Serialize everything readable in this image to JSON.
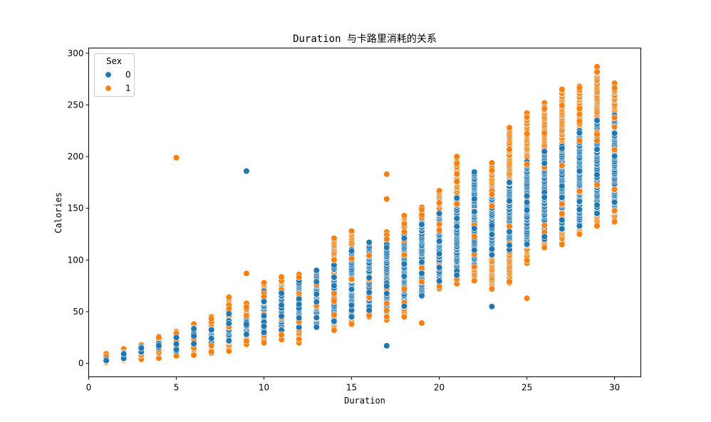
{
  "chart_data": {
    "type": "scatter",
    "title": "Duration 与卡路里消耗的关系",
    "xlabel": "Duration",
    "ylabel": "Calories",
    "xlim": [
      0,
      31.5
    ],
    "ylim": [
      -13,
      305
    ],
    "xticks": [
      0,
      5,
      10,
      15,
      20,
      25,
      30
    ],
    "yticks": [
      0,
      50,
      100,
      150,
      200,
      250,
      300
    ],
    "grid": false,
    "legend": {
      "title": "Sex",
      "position": "top-left"
    },
    "colors": {
      "0": "#1f77b4",
      "1": "#ff7f0e"
    },
    "series": [
      {
        "name": "0",
        "color": "#1f77b4",
        "ranges": [
          {
            "x": 1,
            "min": 2,
            "max": 5
          },
          {
            "x": 2,
            "min": 4,
            "max": 10
          },
          {
            "x": 3,
            "min": 8,
            "max": 16
          },
          {
            "x": 4,
            "min": 10,
            "max": 21
          },
          {
            "x": 5,
            "min": 11,
            "max": 29
          },
          {
            "x": 6,
            "min": 17,
            "max": 34
          },
          {
            "x": 7,
            "min": 20,
            "max": 40
          },
          {
            "x": 8,
            "min": 22,
            "max": 50
          },
          {
            "x": 9,
            "min": 28,
            "max": 45
          },
          {
            "x": 10,
            "min": 30,
            "max": 70
          },
          {
            "x": 11,
            "min": 32,
            "max": 72
          },
          {
            "x": 12,
            "min": 35,
            "max": 80
          },
          {
            "x": 13,
            "min": 35,
            "max": 90
          },
          {
            "x": 14,
            "min": 40,
            "max": 95
          },
          {
            "x": 15,
            "min": 45,
            "max": 110
          },
          {
            "x": 16,
            "min": 50,
            "max": 117
          },
          {
            "x": 17,
            "min": 50,
            "max": 115
          },
          {
            "x": 18,
            "min": 55,
            "max": 125
          },
          {
            "x": 19,
            "min": 65,
            "max": 140
          },
          {
            "x": 20,
            "min": 75,
            "max": 145
          },
          {
            "x": 21,
            "min": 85,
            "max": 160
          },
          {
            "x": 22,
            "min": 95,
            "max": 185
          },
          {
            "x": 23,
            "min": 105,
            "max": 165
          },
          {
            "x": 24,
            "min": 110,
            "max": 175
          },
          {
            "x": 25,
            "min": 115,
            "max": 195
          },
          {
            "x": 26,
            "min": 120,
            "max": 205
          },
          {
            "x": 27,
            "min": 130,
            "max": 210
          },
          {
            "x": 28,
            "min": 133,
            "max": 225
          },
          {
            "x": 29,
            "min": 145,
            "max": 235
          },
          {
            "x": 30,
            "min": 147,
            "max": 240
          }
        ],
        "outliers": [
          [
            9,
            186
          ],
          [
            17,
            17
          ],
          [
            23,
            55
          ],
          [
            22,
            185
          ]
        ]
      },
      {
        "name": "1",
        "color": "#ff7f0e",
        "ranges": [
          {
            "x": 1,
            "min": 1,
            "max": 10
          },
          {
            "x": 2,
            "min": 3,
            "max": 14
          },
          {
            "x": 3,
            "min": 4,
            "max": 18
          },
          {
            "x": 4,
            "min": 5,
            "max": 26
          },
          {
            "x": 5,
            "min": 7,
            "max": 31
          },
          {
            "x": 6,
            "min": 8,
            "max": 38
          },
          {
            "x": 7,
            "min": 10,
            "max": 45
          },
          {
            "x": 8,
            "min": 12,
            "max": 64
          },
          {
            "x": 9,
            "min": 18,
            "max": 58
          },
          {
            "x": 10,
            "min": 20,
            "max": 78
          },
          {
            "x": 11,
            "min": 23,
            "max": 84
          },
          {
            "x": 12,
            "min": 20,
            "max": 86
          },
          {
            "x": 13,
            "min": 35,
            "max": 90
          },
          {
            "x": 14,
            "min": 32,
            "max": 121
          },
          {
            "x": 15,
            "min": 38,
            "max": 128
          },
          {
            "x": 16,
            "min": 45,
            "max": 112
          },
          {
            "x": 17,
            "min": 42,
            "max": 127
          },
          {
            "x": 18,
            "min": 45,
            "max": 143
          },
          {
            "x": 19,
            "min": 70,
            "max": 151
          },
          {
            "x": 20,
            "min": 72,
            "max": 167
          },
          {
            "x": 21,
            "min": 77,
            "max": 200
          },
          {
            "x": 22,
            "min": 80,
            "max": 180
          },
          {
            "x": 23,
            "min": 72,
            "max": 194
          },
          {
            "x": 24,
            "min": 78,
            "max": 228
          },
          {
            "x": 25,
            "min": 97,
            "max": 242
          },
          {
            "x": 26,
            "min": 112,
            "max": 252
          },
          {
            "x": 27,
            "min": 115,
            "max": 265
          },
          {
            "x": 28,
            "min": 125,
            "max": 268
          },
          {
            "x": 29,
            "min": 133,
            "max": 287
          },
          {
            "x": 30,
            "min": 137,
            "max": 271
          }
        ],
        "outliers": [
          [
            5,
            199
          ],
          [
            9,
            87
          ],
          [
            17,
            183
          ],
          [
            17,
            159
          ],
          [
            19,
            39
          ],
          [
            25,
            63
          ],
          [
            23,
            72
          ]
        ]
      }
    ]
  }
}
